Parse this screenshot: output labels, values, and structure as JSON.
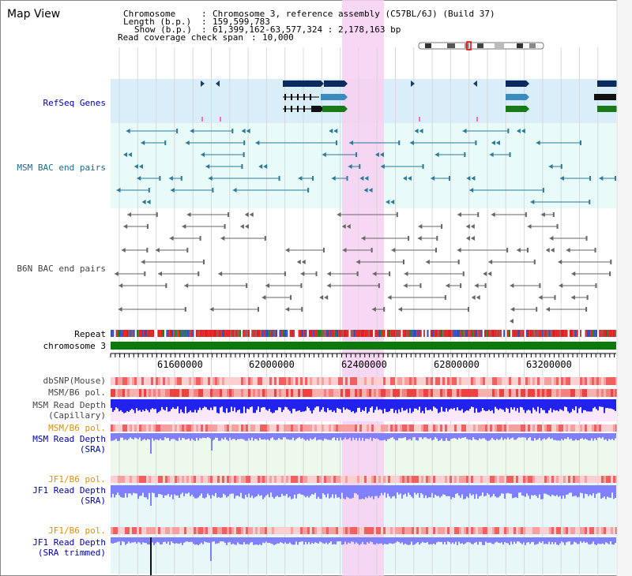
{
  "window": {
    "title": "Map View"
  },
  "info": {
    "chromosome_label": "Chromosome",
    "chromosome_value": "Chromosome 3, reference assembly (C57BL/6J) (Build 37)",
    "length_label": "Length (b.p.)",
    "length_value": "159,599,783",
    "show_label": "Show (b.p.)",
    "show_value": "61,399,162-63,577,324 : 2,178,163 bp",
    "coverage_label": "Read coverage check span",
    "coverage_value": "10,000"
  },
  "tracks": {
    "refseq": "RefSeq Genes",
    "msm_bac": "MSM BAC end pairs",
    "b6n_bac": "B6N BAC end pairs",
    "repeat": "Repeat",
    "chromosome": "chromosome 3",
    "dbsnp": "dbSNP(Mouse)",
    "msm_b6_pol": "MSM/B6 pol.",
    "msm_depth_cap_1": "MSM Read Depth",
    "msm_depth_cap_2": "(Capillary)",
    "msm_b6_pol_2": "MSM/B6 pol.",
    "msm_depth_sra_1": "MSM Read Depth",
    "msm_depth_sra_2": "(SRA)",
    "jf1_b6_pol": "JF1/B6 pol.",
    "jf1_depth_sra_1": "JF1 Read Depth",
    "jf1_depth_sra_2": "(SRA)",
    "jf1_b6_pol_2": "JF1/B6 pol.",
    "jf1_depth_trim_1": "JF1 Read Depth",
    "jf1_depth_trim_2": "(SRA trimmed)"
  },
  "axis": {
    "ticks": [
      "61600000",
      "62000000",
      "62400000",
      "62800000",
      "63200000"
    ]
  },
  "colors": {
    "refseq_bg": "#d9eef9",
    "bac_bg": "#e8fbf8",
    "highlight": "#f7d0f2",
    "msm_bac": "#2a7a9a",
    "b6n_bac": "#666666",
    "chromosome_bar": "#0b7a0b",
    "gene_dark": "#0b2a5e",
    "gene_blue": "#3a8cc0",
    "gene_green": "#1a7a1a",
    "depth_blue": "#2222ee",
    "depth_light": "#8080ff",
    "label_blue": "#0000aa",
    "label_orange": "#e09000",
    "label_teal": "#1a6a8a"
  }
}
